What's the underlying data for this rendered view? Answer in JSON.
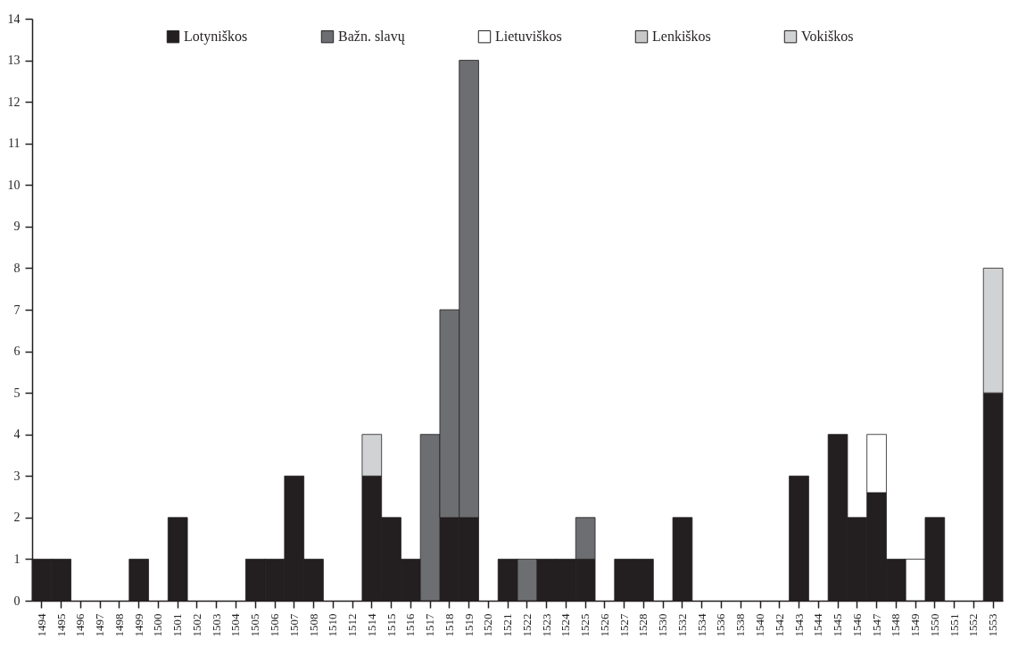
{
  "chart_data": {
    "type": "bar",
    "stacked": true,
    "categories": [
      "1494",
      "1495",
      "1496",
      "1497",
      "1498",
      "1499",
      "1500",
      "1501",
      "1502",
      "1503",
      "1504",
      "1505",
      "1506",
      "1507",
      "1508",
      "1510",
      "1512",
      "1514",
      "1515",
      "1516",
      "1517",
      "1518",
      "1519",
      "1520",
      "1521",
      "1522",
      "1523",
      "1524",
      "1525",
      "1526",
      "1527",
      "1528",
      "1530",
      "1532",
      "1534",
      "1536",
      "1538",
      "1540",
      "1542",
      "1543",
      "1544",
      "1545",
      "1546",
      "1547",
      "1548",
      "1549",
      "1550",
      "1551",
      "1552",
      "1553"
    ],
    "series": [
      {
        "name": "Lotyniškos",
        "color": "#231f20",
        "values": [
          1,
          1,
          0,
          0,
          0,
          1,
          0,
          2,
          0,
          0,
          0,
          1,
          1,
          3,
          1,
          0,
          0,
          3,
          2,
          1,
          0,
          2,
          2,
          0,
          1,
          0,
          1,
          1,
          1,
          0,
          1,
          1,
          0,
          2,
          0,
          0,
          0,
          0,
          0,
          3,
          0,
          4,
          2,
          2.6,
          1,
          0,
          2,
          0,
          0,
          5
        ]
      },
      {
        "name": "Bažn. slavų",
        "color": "#6d6e71",
        "values": [
          0,
          0,
          0,
          0,
          0,
          0,
          0,
          0,
          0,
          0,
          0,
          0,
          0,
          0,
          0,
          0,
          0,
          0,
          0,
          0,
          4,
          5,
          11,
          0,
          0,
          1,
          0,
          0,
          1,
          0,
          0,
          0,
          0,
          0,
          0,
          0,
          0,
          0,
          0,
          0,
          0,
          0,
          0,
          0,
          0,
          0,
          0,
          0,
          0,
          0
        ]
      },
      {
        "name": "Lietuviškos",
        "color": "#ffffff",
        "values": [
          0,
          0,
          0,
          0,
          0,
          0,
          0,
          0,
          0,
          0,
          0,
          0,
          0,
          0,
          0,
          0,
          0,
          0,
          0,
          0,
          0,
          0,
          0,
          0,
          0,
          0,
          0,
          0,
          0,
          0,
          0,
          0,
          0,
          0,
          0,
          0,
          0,
          0,
          0,
          0,
          0,
          0,
          0,
          1.4,
          0,
          1,
          0,
          0,
          0,
          0
        ]
      },
      {
        "name": "Lenkiškos",
        "color": "#c8c8c8",
        "values": [
          0,
          0,
          0,
          0,
          0,
          0,
          0,
          0,
          0,
          0,
          0,
          0,
          0,
          0,
          0,
          0,
          0,
          0,
          0,
          0,
          0,
          0,
          0,
          0,
          0,
          0,
          0,
          0,
          0,
          0,
          0,
          0,
          0,
          0,
          0,
          0,
          0,
          0,
          0,
          0,
          0,
          0,
          0,
          0,
          0,
          0,
          0,
          0,
          0,
          0
        ]
      },
      {
        "name": "Vokiškos",
        "color": "#d1d2d4",
        "values": [
          0,
          0,
          0,
          0,
          0,
          0,
          0,
          0,
          0,
          0,
          0,
          0,
          0,
          0,
          0,
          0,
          0,
          1,
          0,
          0,
          0,
          0,
          0,
          0,
          0,
          0,
          0,
          0,
          0,
          0,
          0,
          0,
          0,
          0,
          0,
          0,
          0,
          0,
          0,
          0,
          0,
          0,
          0,
          0,
          0,
          0,
          0,
          0,
          0,
          3
        ]
      }
    ],
    "ylim": [
      0,
      14
    ],
    "yticks": [
      0,
      1,
      2,
      3,
      4,
      5,
      6,
      7,
      8,
      9,
      10,
      11,
      12,
      13,
      14
    ],
    "grid": false,
    "legend": "top"
  }
}
